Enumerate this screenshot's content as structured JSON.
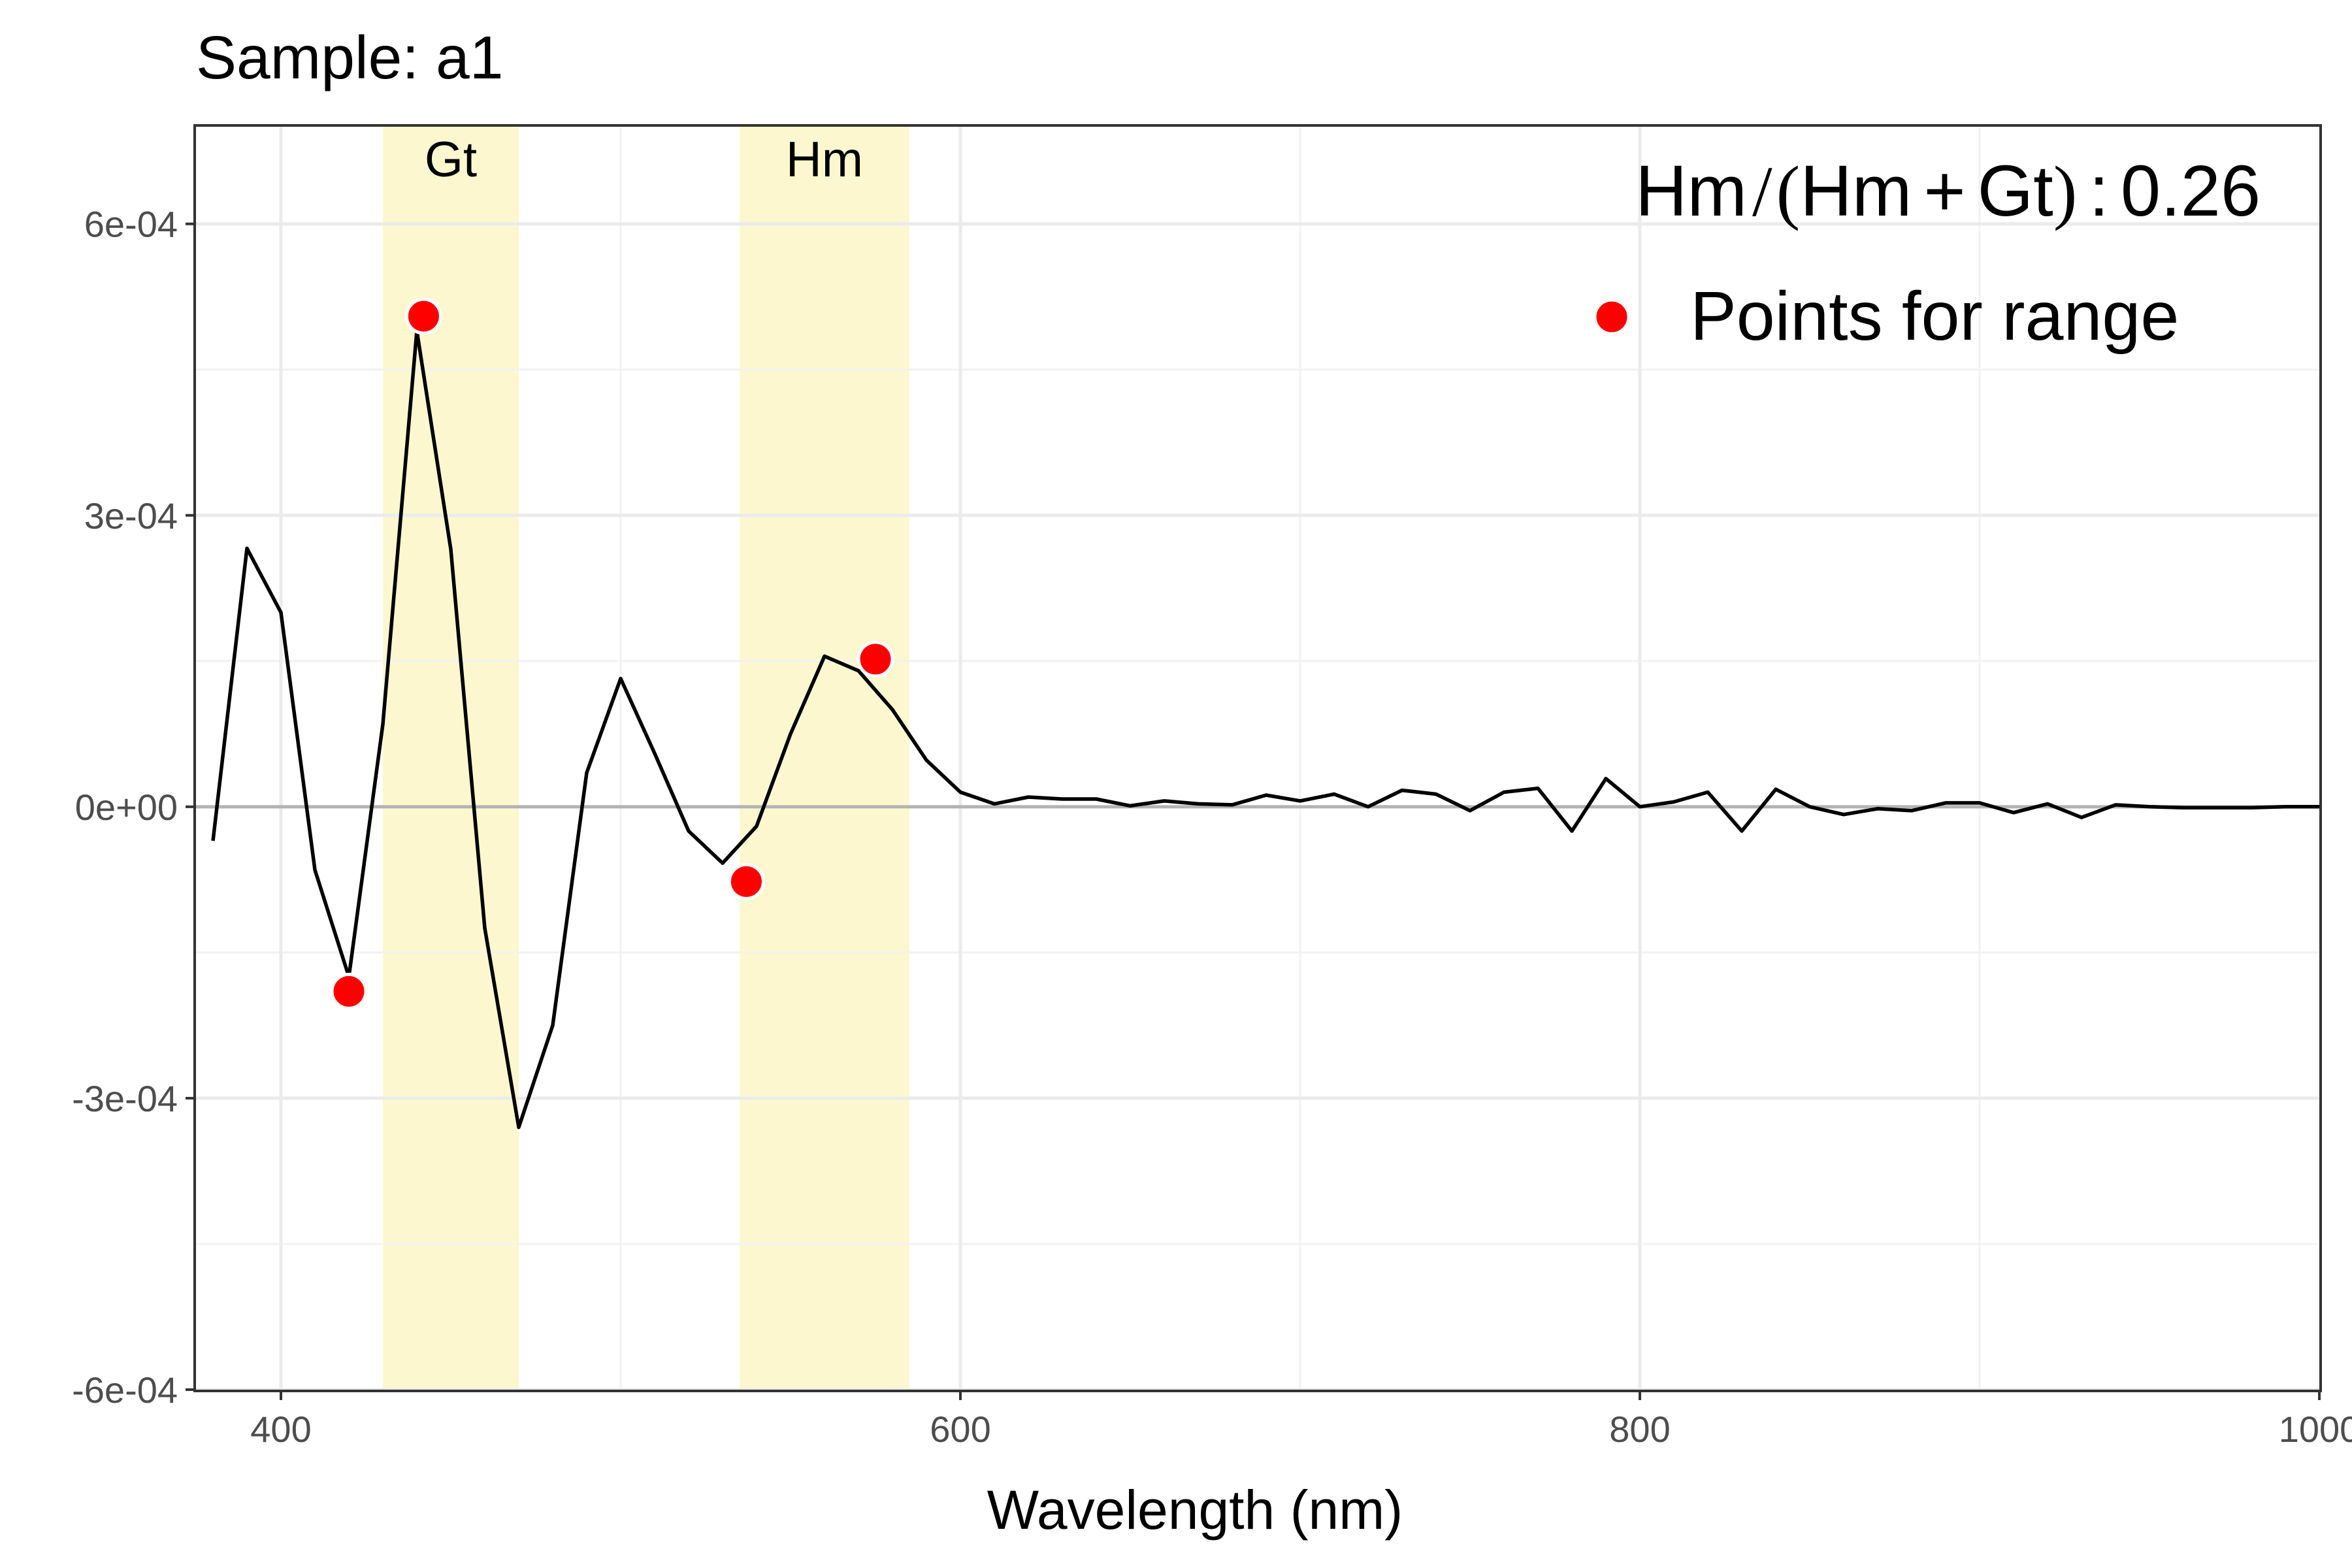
{
  "chart_data": {
    "type": "line",
    "title": "Sample:  a1",
    "xlabel": "Wavelength (nm)",
    "ylabel": "",
    "xlim": [
      375,
      1000
    ],
    "ylim": [
      -0.0006,
      0.0007
    ],
    "x_ticks": [
      {
        "value": 400,
        "label": "400"
      },
      {
        "value": 600,
        "label": "600"
      },
      {
        "value": 800,
        "label": "800"
      },
      {
        "value": 1000,
        "label": "1000"
      }
    ],
    "y_ticks": [
      {
        "value": 0.0006,
        "label": "6e-04"
      },
      {
        "value": 0.0003,
        "label": "3e-04"
      },
      {
        "value": 0,
        "label": "0e+00"
      },
      {
        "value": -0.0003,
        "label": "-3e-04"
      },
      {
        "value": -0.0006,
        "label": "-6e-04"
      }
    ],
    "grid": true,
    "bands": [
      {
        "label": "Gt",
        "x_start": 430,
        "x_end": 470,
        "color": "#fdf7cf"
      },
      {
        "label": "Hm",
        "x_start": 535,
        "x_end": 585,
        "color": "#fdf7cf"
      }
    ],
    "series": [
      {
        "color": "#000000",
        "x": [
          380,
          390,
          400,
          410,
          420,
          430,
          440,
          450,
          460,
          470,
          480,
          490,
          500,
          510,
          520,
          530,
          540,
          550,
          560,
          570,
          580,
          590,
          600,
          610,
          620,
          630,
          640,
          650,
          660,
          670,
          680,
          690,
          700,
          710,
          720,
          730,
          740,
          750,
          760,
          770,
          780,
          790,
          800,
          810,
          820,
          830,
          840,
          850,
          860,
          870,
          880,
          890,
          900,
          910,
          920,
          930,
          940,
          950,
          960,
          970,
          980,
          990,
          1000
        ],
        "y": [
          -3.5e-05,
          0.000266,
          0.0002,
          -6.5e-05,
          -0.000175,
          8.5e-05,
          0.00049,
          0.000265,
          -0.000125,
          -0.00033,
          -0.000225,
          3.5e-05,
          0.000132,
          5.5e-05,
          -2.5e-05,
          -5.8e-05,
          -2e-05,
          7.5e-05,
          0.000155,
          0.00014,
          0.0001,
          4.8e-05,
          1.5e-05,
          3e-06,
          1e-05,
          8e-06,
          8e-06,
          1e-06,
          6e-06,
          3e-06,
          2e-06,
          1.2e-05,
          6e-06,
          1.3e-05,
          0.0,
          1.7e-05,
          1.3e-05,
          -4e-06,
          1.5e-05,
          1.9e-05,
          -2.5e-05,
          2.9e-05,
          0.0,
          5e-06,
          1.5e-05,
          -2.5e-05,
          1.8e-05,
          0.0,
          -8e-06,
          -2e-06,
          -4e-06,
          4e-06,
          4e-06,
          -6e-06,
          3e-06,
          -1.1e-05,
          2e-06,
          0.0,
          -1e-06,
          -1e-06,
          -1e-06,
          0.0,
          0.0
        ]
      }
    ],
    "points": {
      "name": "Points for range",
      "color": "#ff0000",
      "x": [
        420,
        442,
        537,
        575
      ],
      "y": [
        -0.00019,
        0.000505,
        -7.7e-05,
        0.000152
      ]
    },
    "legend": {
      "position": "top-right",
      "entries": [
        "Points for range"
      ]
    },
    "annotation": {
      "numerator": "Hm",
      "denominator_a": "Hm",
      "operator": "+",
      "denominator_b": "Gt",
      "separator": ":",
      "value": "0.26"
    }
  }
}
